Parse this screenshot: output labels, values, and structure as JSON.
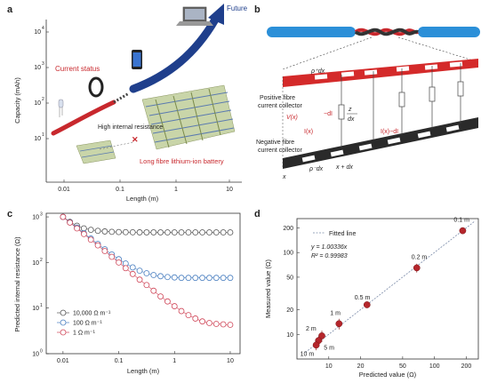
{
  "panels": {
    "a": {
      "label": "a",
      "ylabel": "Capacity (mAh)",
      "xlabel": "Length (m)",
      "xticks": [
        "0.01",
        "0.1",
        "1",
        "10"
      ],
      "yticks": [
        "10",
        "10",
        "10",
        "10"
      ],
      "yexp": [
        "1",
        "2",
        "3",
        "4"
      ],
      "texts": {
        "current": "Current status",
        "future": "Future",
        "resistance": "High internal resistance",
        "battery": "Long fibre lithium-ion battery"
      }
    },
    "b": {
      "label": "b",
      "texts": {
        "rho_top": "ρ⁺dx",
        "pos1": "Positive fibre",
        "pos2": "current collector",
        "vx": "V(x)",
        "dI": "−dI",
        "z": "z",
        "dx": "dx",
        "ix": "I(x)",
        "ixd": "I(x)−dI",
        "neg1": "Negative fibre",
        "neg2": "current collector",
        "rho_bot": "ρ⁻dx",
        "x": "x",
        "xdx": "x + dx"
      }
    },
    "c": {
      "label": "c",
      "ylabel": "Predicted internal resistance (Ω)",
      "xlabel": "Length (m)",
      "xticks": [
        "0.01",
        "0.1",
        "1",
        "10"
      ],
      "yticks": [
        "10",
        "10",
        "10",
        "10"
      ],
      "yexp": [
        "0",
        "1",
        "2",
        "3"
      ]
    },
    "d": {
      "label": "d",
      "ylabel": "Measured value (Ω)",
      "xlabel": "Predicted value (Ω)",
      "xticks": [
        "10",
        "20",
        "50",
        "100",
        "200"
      ],
      "yticks": [
        "10",
        "20",
        "50",
        "100",
        "200"
      ],
      "legend_line": "Fitted line",
      "eq": "y = 1.00336x",
      "r2": "R² = 0.99983"
    }
  },
  "chart_data": [
    {
      "panel": "c",
      "type": "scatter",
      "xscale": "log",
      "yscale": "log",
      "xlim": [
        0.005,
        15
      ],
      "ylim": [
        1,
        1200
      ],
      "series": [
        {
          "name": "10,000 Ω m⁻¹",
          "color": "#555555",
          "x": [
            0.01,
            0.0133,
            0.0178,
            0.0237,
            0.0316,
            0.0422,
            0.0562,
            0.075,
            0.1,
            0.133,
            0.178,
            0.237,
            0.316,
            0.422,
            0.562,
            0.75,
            1,
            1.33,
            1.78,
            2.37,
            3.16,
            4.22,
            5.62,
            7.5,
            10
          ],
          "y": [
            1000,
            780,
            640,
            560,
            520,
            495,
            480,
            470,
            465,
            462,
            460,
            459,
            458,
            458,
            458,
            457,
            457,
            457,
            457,
            457,
            457,
            457,
            457,
            457,
            457
          ]
        },
        {
          "name": "100 Ω m⁻¹",
          "color": "#4a7fc0",
          "x": [
            0.01,
            0.0133,
            0.0178,
            0.0237,
            0.0316,
            0.0422,
            0.0562,
            0.075,
            0.1,
            0.133,
            0.178,
            0.237,
            0.316,
            0.422,
            0.562,
            0.75,
            1,
            1.33,
            1.78,
            2.37,
            3.16,
            4.22,
            5.62,
            7.5,
            10
          ],
          "y": [
            1000,
            760,
            580,
            440,
            335,
            255,
            195,
            150,
            118,
            95,
            78,
            66,
            58,
            53,
            50,
            48,
            47,
            46,
            46,
            46,
            46,
            46,
            46,
            46,
            46
          ]
        },
        {
          "name": "1 Ω m⁻¹",
          "color": "#d0485a",
          "x": [
            0.01,
            0.0133,
            0.0178,
            0.0237,
            0.0316,
            0.0422,
            0.0562,
            0.075,
            0.1,
            0.133,
            0.178,
            0.237,
            0.316,
            0.422,
            0.562,
            0.75,
            1,
            1.33,
            1.78,
            2.37,
            3.16,
            4.22,
            5.62,
            7.5,
            10
          ],
          "y": [
            1000,
            750,
            560,
            420,
            316,
            237,
            178,
            133,
            100,
            75,
            56,
            42,
            32,
            24,
            18,
            14,
            11,
            8.6,
            7,
            5.9,
            5.1,
            4.7,
            4.5,
            4.4,
            4.3
          ]
        }
      ]
    },
    {
      "panel": "d",
      "type": "scatter",
      "xscale": "log",
      "yscale": "log",
      "xlim": [
        5,
        260
      ],
      "ylim": [
        5,
        260
      ],
      "points": [
        {
          "label": "0.1 m",
          "x": 185,
          "y": 185,
          "err": 14
        },
        {
          "label": "0.2 m",
          "x": 68,
          "y": 65,
          "err": 8
        },
        {
          "label": "0.5 m",
          "x": 23,
          "y": 23,
          "err": 1.5
        },
        {
          "label": "1 m",
          "x": 12.5,
          "y": 13.5,
          "err": 2
        },
        {
          "label": "2 m",
          "x": 8.6,
          "y": 9.6,
          "err": 1.5
        },
        {
          "label": "5 m",
          "x": 8,
          "y": 8.4,
          "err": 1
        },
        {
          "label": "10 m",
          "x": 7.6,
          "y": 7.4,
          "err": 1
        }
      ],
      "fit": {
        "slope": 1.00336
      }
    }
  ]
}
